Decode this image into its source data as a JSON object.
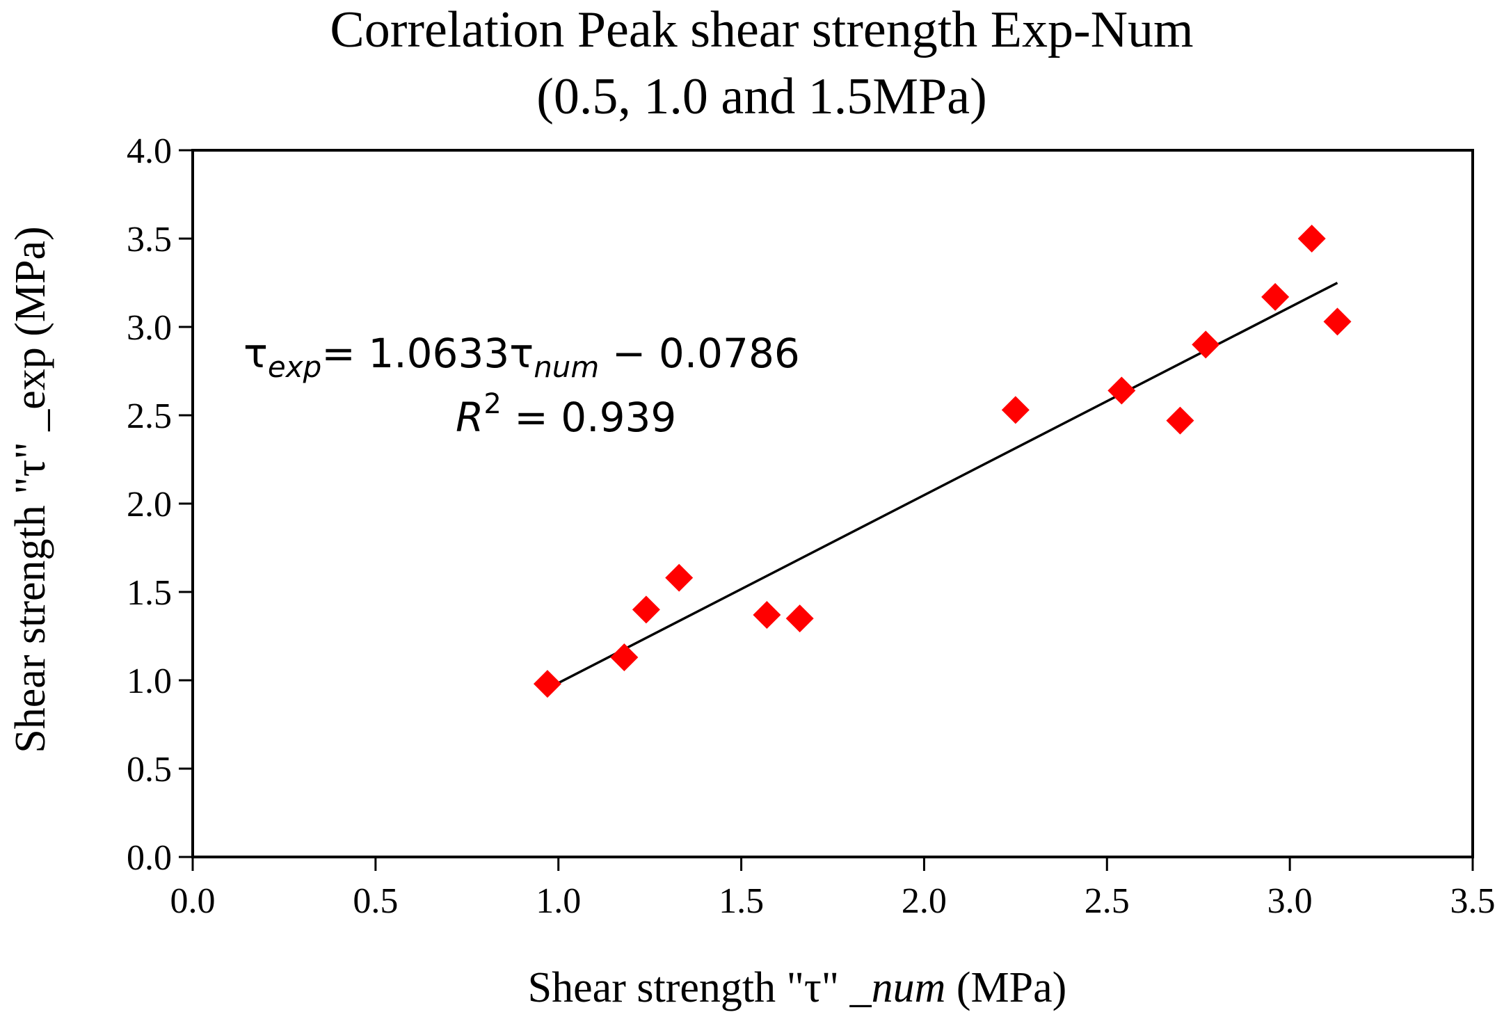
{
  "chart_data": {
    "type": "scatter",
    "title": [
      "Correlation Peak shear strength Exp-Num",
      "(0.5, 1.0 and 1.5MPa)"
    ],
    "xlabel": {
      "prefix": "Shear strength \"τ\" _",
      "italic": "num",
      "suffix": " (MPa)"
    },
    "ylabel": "Shear strength  \"τ\" _exp (MPa)",
    "xlim": [
      0.0,
      3.5
    ],
    "ylim": [
      0.0,
      4.0
    ],
    "x_ticks": [
      "0.0",
      "0.5",
      "1.0",
      "1.5",
      "2.0",
      "2.5",
      "3.0",
      "3.5"
    ],
    "y_ticks": [
      "0.0",
      "0.5",
      "1.0",
      "1.5",
      "2.0",
      "2.5",
      "3.0",
      "3.5",
      "4.0"
    ],
    "grid": false,
    "marker": {
      "shape": "diamond",
      "color": "#ff0000"
    },
    "points": [
      {
        "x": 0.97,
        "y": 0.98
      },
      {
        "x": 1.18,
        "y": 1.13
      },
      {
        "x": 1.24,
        "y": 1.4
      },
      {
        "x": 1.33,
        "y": 1.58
      },
      {
        "x": 1.57,
        "y": 1.37
      },
      {
        "x": 1.66,
        "y": 1.35
      },
      {
        "x": 2.25,
        "y": 2.53
      },
      {
        "x": 2.54,
        "y": 2.64
      },
      {
        "x": 2.7,
        "y": 2.47
      },
      {
        "x": 2.77,
        "y": 2.9
      },
      {
        "x": 2.96,
        "y": 3.17
      },
      {
        "x": 3.06,
        "y": 3.5
      },
      {
        "x": 3.13,
        "y": 3.03
      }
    ],
    "trendline": {
      "slope": 1.0633,
      "intercept": -0.0786,
      "x_range": [
        0.97,
        3.13
      ],
      "equation": {
        "lhs": "τ",
        "lhs_sub": "exp",
        "eq": "= 1.0633τ",
        "rhs_sub": "num",
        "rhs_tail": " − 0.0786"
      },
      "r_squared": {
        "symbol": "R",
        "power": "2",
        "value": " = 0.939"
      }
    }
  }
}
